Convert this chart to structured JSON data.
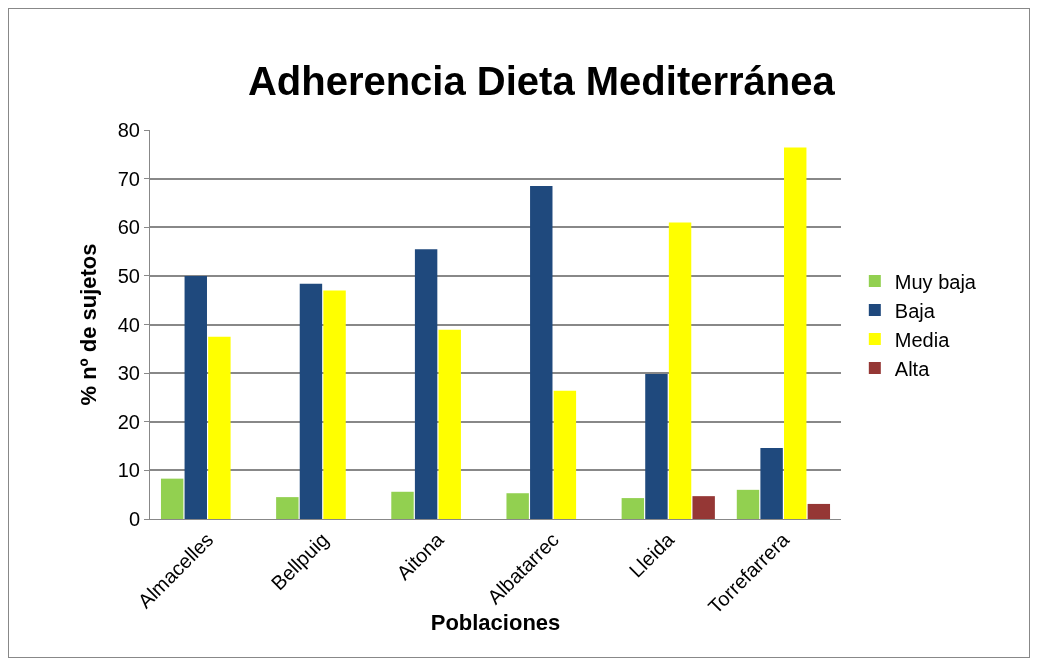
{
  "chart_data": {
    "type": "bar",
    "title": "Adherencia Dieta Mediterránea",
    "xlabel": "Poblaciones",
    "ylabel": "% nº de sujetos",
    "categories": [
      "Almacelles",
      "Bellpuig",
      "Aitona",
      "Albatarrec",
      "Lleida",
      "Torrefarrera"
    ],
    "series": [
      {
        "name": "Muy baja",
        "color": "#92d050",
        "values": [
          8.3,
          4.5,
          5.6,
          5.3,
          4.3,
          6
        ]
      },
      {
        "name": "Baja",
        "color": "#1f497d",
        "values": [
          50,
          48.4,
          55.5,
          68.5,
          29.8,
          14.6
        ]
      },
      {
        "name": "Media",
        "color": "#ffff00",
        "values": [
          37.5,
          47,
          38.9,
          26.4,
          61,
          76.4
        ]
      },
      {
        "name": "Alta",
        "color": "#953735",
        "values": [
          0,
          0,
          0,
          0,
          4.7,
          3.1
        ]
      }
    ],
    "ylim": [
      0,
      80
    ],
    "yticks": [
      0,
      10,
      20,
      30,
      40,
      50,
      60,
      70,
      80
    ],
    "grid": "y",
    "legend": "right"
  }
}
